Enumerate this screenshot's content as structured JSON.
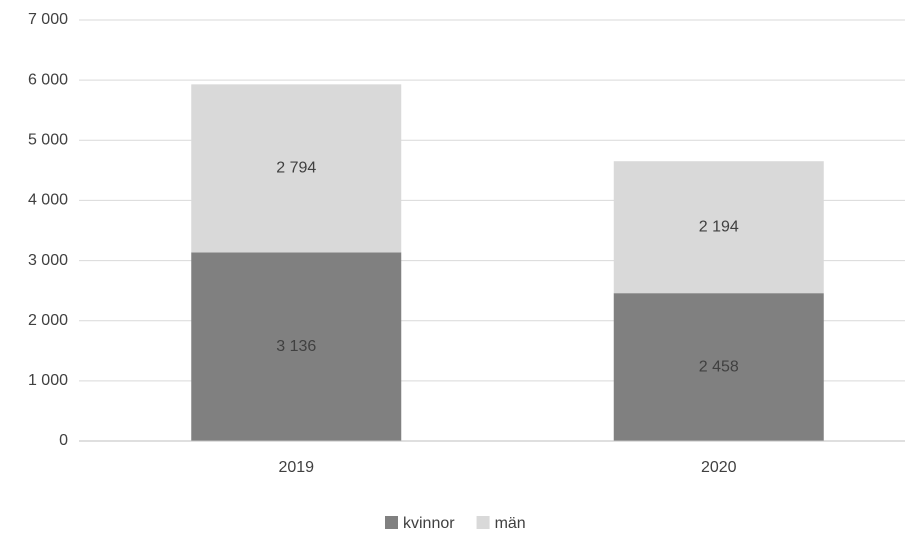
{
  "chart_data": {
    "type": "stacked_bar",
    "categories": [
      "2019",
      "2020"
    ],
    "series": [
      {
        "name": "kvinnor",
        "color": "#808080",
        "values": [
          3136,
          2458
        ],
        "value_labels": [
          "3 136",
          "2 458"
        ]
      },
      {
        "name": "män",
        "color": "#d9d9d9",
        "values": [
          2794,
          2194
        ],
        "value_labels": [
          "2 794",
          "2 194"
        ]
      }
    ],
    "ylim": [
      0,
      7000
    ],
    "yticks": [
      0,
      {
        "value": 1000,
        "label": "1 000"
      },
      {
        "value": 2000,
        "label": "2 000"
      },
      {
        "value": 3000,
        "label": "3 000"
      },
      {
        "value": 4000,
        "label": "4 000"
      },
      {
        "value": 5000,
        "label": "5 000"
      },
      {
        "value": 6000,
        "label": "6 000"
      },
      {
        "value": 7000,
        "label": "7 000"
      }
    ],
    "grid": true,
    "legend": "bottom"
  }
}
